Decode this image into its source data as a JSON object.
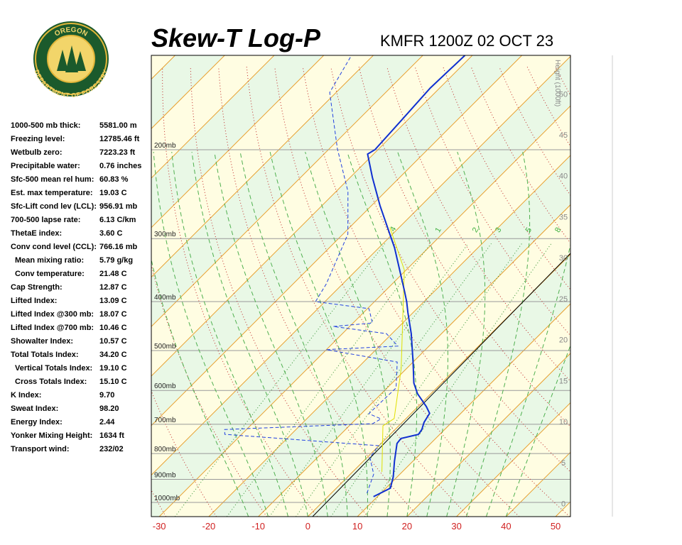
{
  "logo": {
    "top": "OREGON",
    "bottom": "DEPARTMENT OF FORESTRY"
  },
  "stats": [
    [
      "1000-500 mb thick:",
      "5581.00 m"
    ],
    [
      "Freezing level:",
      "12785.46 ft"
    ],
    [
      "Wetbulb zero:",
      "7223.23 ft"
    ],
    [
      "Precipitable water:",
      "0.76 inches"
    ],
    [
      "Sfc-500 mean rel hum:",
      "60.83 %"
    ],
    [
      "Est. max temperature:",
      "19.03 C"
    ],
    [
      "Sfc-Lift cond lev (LCL):",
      "956.91 mb"
    ],
    [
      "700-500 lapse rate:",
      "6.13 C/km"
    ],
    [
      "ThetaE index:",
      "3.60 C"
    ],
    [
      "Conv cond level (CCL):",
      "766.16 mb"
    ],
    [
      "Mean mixing ratio:",
      "5.79 g/kg"
    ],
    [
      "Conv temperature:",
      "21.48 C"
    ],
    [
      "Cap Strength:",
      "12.87 C"
    ],
    [
      "Lifted Index:",
      "13.09 C"
    ],
    [
      "Lifted Index @300 mb:",
      "18.07 C"
    ],
    [
      "Lifted Index @700 mb:",
      "10.46 C"
    ],
    [
      "Showalter Index:",
      "10.57 C"
    ],
    [
      "Total Totals Index:",
      "34.20 C"
    ],
    [
      "Vertical Totals Index:",
      "19.10 C"
    ],
    [
      "Cross Totals Index:",
      "15.10 C"
    ],
    [
      "K Index:",
      "9.70"
    ],
    [
      "Sweat Index:",
      "98.20"
    ],
    [
      "Energy Index:",
      "2.44"
    ],
    [
      "Yonker Mixing Height:",
      "1634 ft"
    ],
    [
      "Transport wind:",
      "232/02"
    ]
  ],
  "chart_data": {
    "type": "skewt",
    "title": "Skew-T Log-P",
    "subtitle": "KMFR 1200Z 02 OCT 23",
    "xlim": [
      -31.6,
      53
    ],
    "xticks": [
      -30,
      -20,
      -10,
      0,
      10,
      20,
      30,
      40,
      50
    ],
    "ylim": [
      1067,
      130
    ],
    "pressure_levels": [
      {
        "value": 200,
        "label": "200mb"
      },
      {
        "value": 300,
        "label": "300mb"
      },
      {
        "value": 400,
        "label": "400mb"
      },
      {
        "value": 500,
        "label": "500mb"
      },
      {
        "value": 600,
        "label": "600mb"
      },
      {
        "value": 700,
        "label": "700mb"
      },
      {
        "value": 800,
        "label": "800mb"
      },
      {
        "value": 900,
        "label": "900mb"
      },
      {
        "value": 1000,
        "label": "1000mb"
      }
    ],
    "height_label": "Height (1000ft)",
    "hlim": [
      -1.6,
      54.7
    ],
    "hticks": [
      0,
      5,
      10,
      15,
      20,
      25,
      30,
      35,
      40,
      45,
      50
    ],
    "mixing_ratios": [
      {
        "value": 0.4,
        "label": ".4"
      },
      1,
      2,
      3,
      5,
      8
    ],
    "series": [
      {
        "color": "#1030d0",
        "dash": false,
        "pressure": [
          974,
          937,
          890,
          829,
          764,
          747,
          733,
          717,
          694,
          666,
          646,
          609,
          580,
          527,
          463,
          420,
          400,
          381,
          313,
          258,
          227,
          204,
          200,
          175,
          151,
          130
        ],
        "values": [
          9.2,
          10.9,
          9.2,
          6.3,
          3.2,
          3.0,
          5.7,
          5.4,
          4.4,
          3.7,
          1.7,
          -2.7,
          -5.6,
          -10.0,
          -16.1,
          -21.1,
          -23.5,
          -26.1,
          -36.8,
          -48.3,
          -55.5,
          -61.2,
          -60.6,
          -61.2,
          -61.9,
          -61.5
        ]
      },
      {
        "color": "#2040e0",
        "dash": true,
        "pressure": [
          959,
          879,
          815,
          772,
          733,
          717,
          698,
          683,
          667,
          593,
          527,
          498,
          490,
          463,
          448,
          441,
          413,
          400,
          369,
          294,
          242,
          199,
          154,
          130
        ],
        "values": [
          7.2,
          4.7,
          0.6,
          -0.1,
          -33.4,
          -34.4,
          -5.7,
          -5.0,
          -8.5,
          -8.2,
          -13.2,
          -30.0,
          -16.3,
          -21.1,
          -33.3,
          -26.1,
          -29.7,
          -41.9,
          -43.3,
          -49.0,
          -57.6,
          -68.4,
          -81.3,
          -84.4
        ]
      },
      {
        "color": "#e0e000",
        "dash": false,
        "pressure": [
          870,
          705,
          682,
          544,
          346,
          285
        ],
        "values": [
          5.9,
          -3.2,
          -2.4,
          -11.0,
          -30.4,
          -41.9
        ]
      }
    ]
  }
}
